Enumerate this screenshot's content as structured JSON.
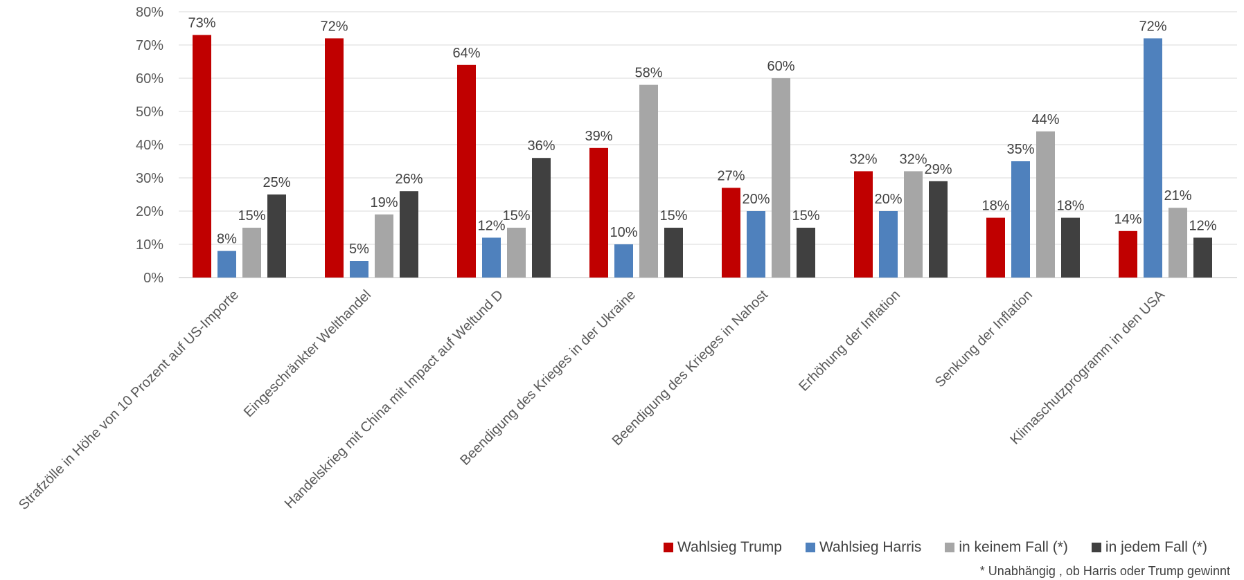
{
  "chart_data": {
    "type": "bar",
    "categories": [
      "Strafzölle in Höhe von 10 Prozent auf US-Importe",
      "Eingeschränkter Welthandel",
      "Handelskrieg mit China mit Impact auf Weltund D",
      "Beendigung des Krieges in der Ukraine",
      "Beendigung des Krieges in Nahost",
      "Erhöhung der Inflation",
      "Senkung der Inflation",
      "Klimaschutzprogramm in den USA"
    ],
    "series": [
      {
        "name": "Wahlsieg Trump",
        "color": "#C00000",
        "values": [
          73,
          72,
          64,
          39,
          27,
          32,
          18,
          14
        ]
      },
      {
        "name": "Wahlsieg Harris",
        "color": "#4F81BD",
        "values": [
          8,
          5,
          12,
          10,
          20,
          20,
          35,
          72
        ]
      },
      {
        "name": "in keinem Fall (*)",
        "color": "#A6A6A6",
        "values": [
          15,
          19,
          15,
          58,
          60,
          32,
          44,
          21
        ]
      },
      {
        "name": "in jedem Fall (*)",
        "color": "#404040",
        "values": [
          25,
          26,
          36,
          15,
          15,
          29,
          18,
          12
        ]
      }
    ],
    "value_suffix": "%",
    "ylim": [
      0,
      80
    ],
    "yticks": [
      "0%",
      "10%",
      "20%",
      "30%",
      "40%",
      "50%",
      "60%",
      "70%",
      "80%"
    ],
    "grid": true,
    "legend_position": "bottom-right",
    "footnote": "* Unabhängig , ob Harris oder Trump gewinnt"
  }
}
